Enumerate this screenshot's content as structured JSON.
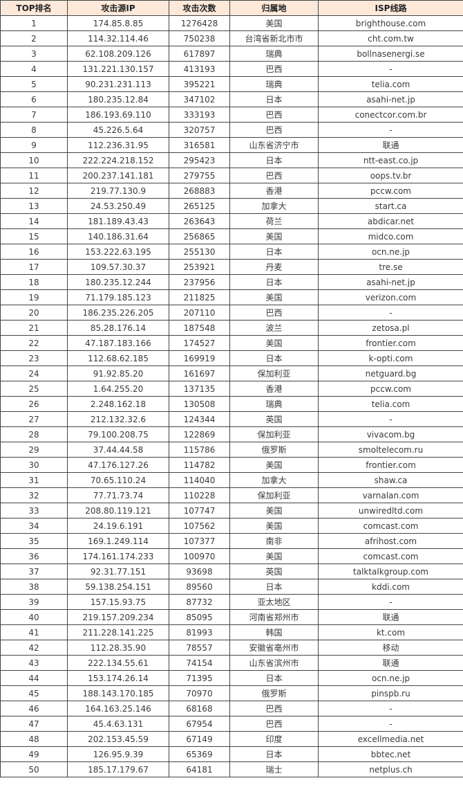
{
  "table": {
    "headers": [
      "TOP排名",
      "攻击源IP",
      "攻击次数",
      "归属地",
      "ISP线路"
    ],
    "rows": [
      [
        "1",
        "174.85.8.85",
        "1276428",
        "美国",
        "brighthouse.com"
      ],
      [
        "2",
        "114.32.114.46",
        "750238",
        "台湾省新北市市",
        "cht.com.tw"
      ],
      [
        "3",
        "62.108.209.126",
        "617897",
        "瑞典",
        "bollnasenergi.se"
      ],
      [
        "4",
        "131.221.130.157",
        "413193",
        "巴西",
        "-"
      ],
      [
        "5",
        "90.231.231.113",
        "395221",
        "瑞典",
        "telia.com"
      ],
      [
        "6",
        "180.235.12.84",
        "347102",
        "日本",
        "asahi-net.jp"
      ],
      [
        "7",
        "186.193.69.110",
        "333193",
        "巴西",
        "conectcor.com.br"
      ],
      [
        "8",
        "45.226.5.64",
        "320757",
        "巴西",
        "-"
      ],
      [
        "9",
        "112.236.31.95",
        "316581",
        "山东省济宁市",
        "联通"
      ],
      [
        "10",
        "222.224.218.152",
        "295423",
        "日本",
        "ntt-east.co.jp"
      ],
      [
        "11",
        "200.237.141.181",
        "279755",
        "巴西",
        "oops.tv.br"
      ],
      [
        "12",
        "219.77.130.9",
        "268883",
        "香港",
        "pccw.com"
      ],
      [
        "13",
        "24.53.250.49",
        "265125",
        "加拿大",
        "start.ca"
      ],
      [
        "14",
        "181.189.43.43",
        "263643",
        "荷兰",
        "abdicar.net"
      ],
      [
        "15",
        "140.186.31.64",
        "256865",
        "美国",
        "midco.com"
      ],
      [
        "16",
        "153.222.63.195",
        "255130",
        "日本",
        "ocn.ne.jp"
      ],
      [
        "17",
        "109.57.30.37",
        "253921",
        "丹麦",
        "tre.se"
      ],
      [
        "18",
        "180.235.12.244",
        "237956",
        "日本",
        "asahi-net.jp"
      ],
      [
        "19",
        "71.179.185.123",
        "211825",
        "美国",
        "verizon.com"
      ],
      [
        "20",
        "186.235.226.205",
        "207110",
        "巴西",
        "-"
      ],
      [
        "21",
        "85.28.176.14",
        "187548",
        "波兰",
        "zetosa.pl"
      ],
      [
        "22",
        "47.187.183.166",
        "174527",
        "美国",
        "frontier.com"
      ],
      [
        "23",
        "112.68.62.185",
        "169919",
        "日本",
        "k-opti.com"
      ],
      [
        "24",
        "91.92.85.20",
        "161697",
        "保加利亚",
        "netguard.bg"
      ],
      [
        "25",
        "1.64.255.20",
        "137135",
        "香港",
        "pccw.com"
      ],
      [
        "26",
        "2.248.162.18",
        "130508",
        "瑞典",
        "telia.com"
      ],
      [
        "27",
        "212.132.32.6",
        "124344",
        "英国",
        "-"
      ],
      [
        "28",
        "79.100.208.75",
        "122869",
        "保加利亚",
        "vivacom.bg"
      ],
      [
        "29",
        "37.44.44.58",
        "115786",
        "俄罗斯",
        "smoltelecom.ru"
      ],
      [
        "30",
        "47.176.127.26",
        "114782",
        "美国",
        "frontier.com"
      ],
      [
        "31",
        "70.65.110.24",
        "114040",
        "加拿大",
        "shaw.ca"
      ],
      [
        "32",
        "77.71.73.74",
        "110228",
        "保加利亚",
        "varnalan.com"
      ],
      [
        "33",
        "208.80.119.121",
        "107747",
        "美国",
        "unwiredltd.com"
      ],
      [
        "34",
        "24.19.6.191",
        "107562",
        "美国",
        "comcast.com"
      ],
      [
        "35",
        "169.1.249.114",
        "107377",
        "南非",
        "afrihost.com"
      ],
      [
        "36",
        "174.161.174.233",
        "100970",
        "美国",
        "comcast.com"
      ],
      [
        "37",
        "92.31.77.151",
        "93698",
        "英国",
        "talktalkgroup.com"
      ],
      [
        "38",
        "59.138.254.151",
        "89560",
        "日本",
        "kddi.com"
      ],
      [
        "39",
        "157.15.93.75",
        "87732",
        "亚太地区",
        "-"
      ],
      [
        "40",
        "219.157.209.234",
        "85095",
        "河南省郑州市",
        "联通"
      ],
      [
        "41",
        "211.228.141.225",
        "81993",
        "韩国",
        "kt.com"
      ],
      [
        "42",
        "112.28.35.90",
        "78557",
        "安徽省亳州市",
        "移动"
      ],
      [
        "43",
        "222.134.55.61",
        "74154",
        "山东省滨州市",
        "联通"
      ],
      [
        "44",
        "153.174.26.14",
        "71395",
        "日本",
        "ocn.ne.jp"
      ],
      [
        "45",
        "188.143.170.185",
        "70970",
        "俄罗斯",
        "pinspb.ru"
      ],
      [
        "46",
        "164.163.25.146",
        "68168",
        "巴西",
        "-"
      ],
      [
        "47",
        "45.4.63.131",
        "67954",
        "巴西",
        "-"
      ],
      [
        "48",
        "202.153.45.59",
        "67149",
        "印度",
        "excellmedia.net"
      ],
      [
        "49",
        "126.95.9.39",
        "65369",
        "日本",
        "bbtec.net"
      ],
      [
        "50",
        "185.17.179.67",
        "64181",
        "瑞士",
        "netplus.ch"
      ]
    ]
  },
  "colors": {
    "header_bg": "#fce9da",
    "border": "#444444",
    "text": "#3a3a3a"
  }
}
